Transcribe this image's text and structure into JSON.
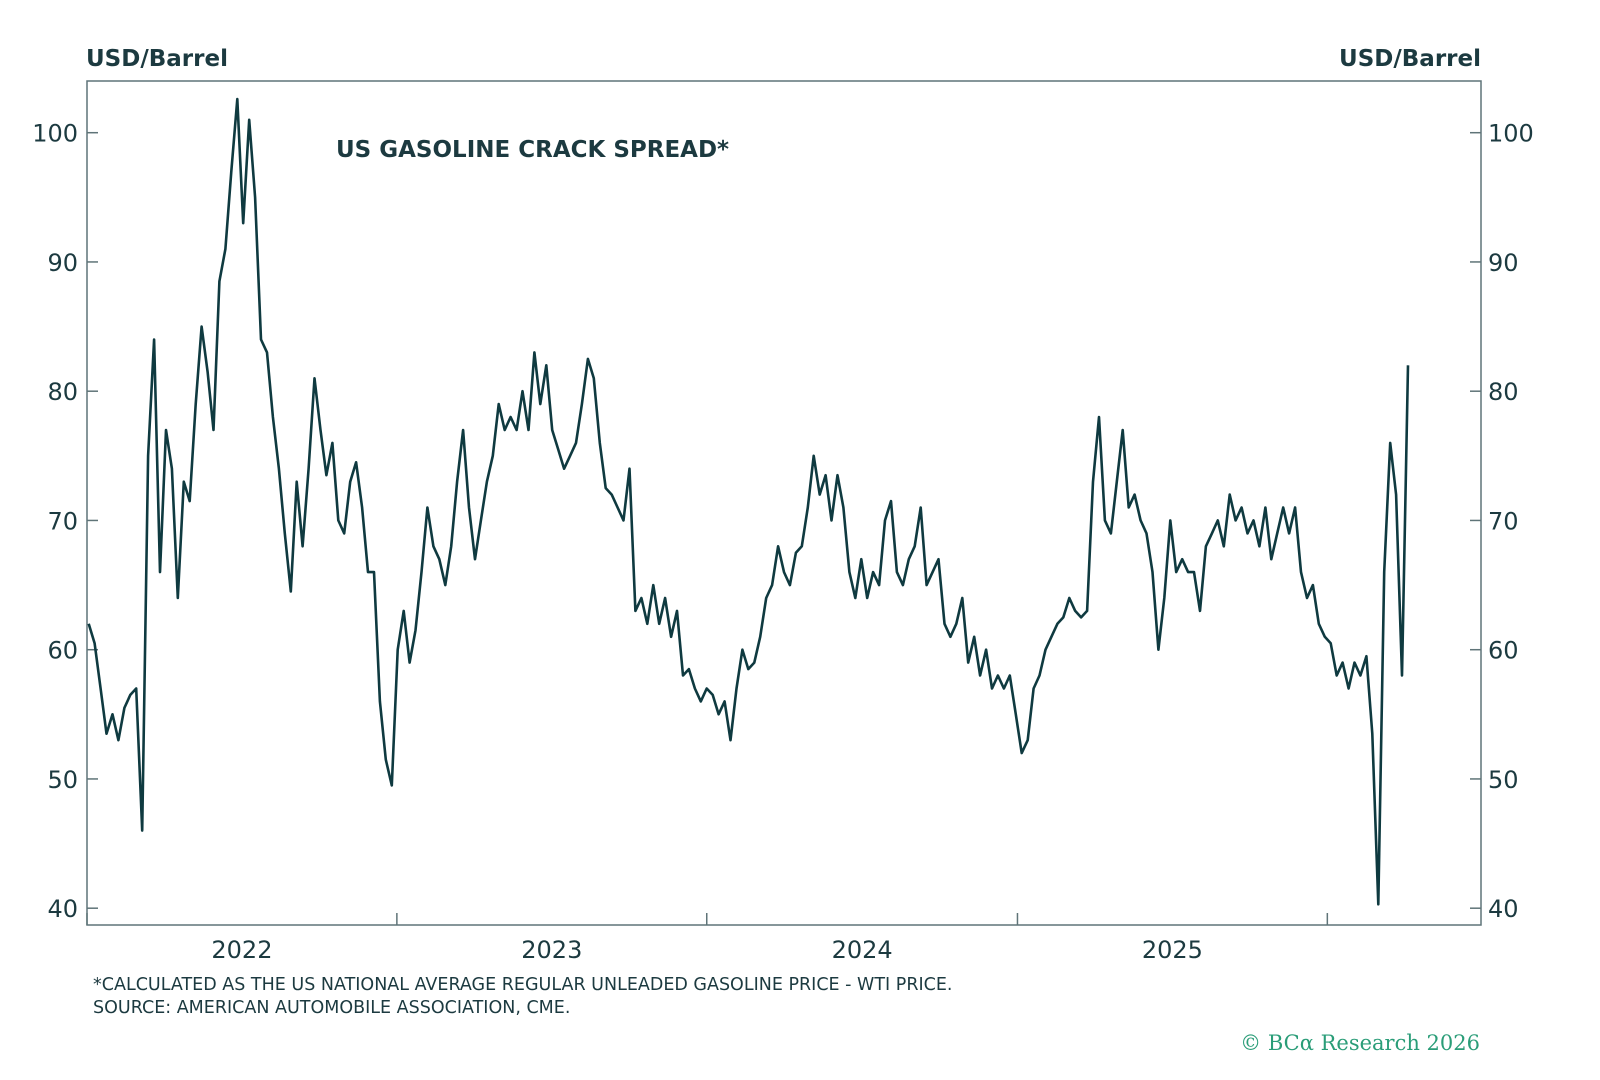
{
  "chart_data": {
    "type": "line",
    "title": "US GASOLINE CRACK SPREAD*",
    "ylabel_left": "USD/Barrel",
    "ylabel_right": "USD/Barrel",
    "ylim": [
      38.7,
      104
    ],
    "yticks": [
      40,
      50,
      60,
      70,
      80,
      90,
      100
    ],
    "xlim": [
      "2022-01-01",
      "2026-07-01"
    ],
    "xticks": [
      "2022",
      "2023",
      "2024",
      "2025"
    ],
    "grid": false,
    "line_color": "#0f3a40",
    "series": [
      {
        "start": "2022-01-03",
        "frequency": "weekly",
        "values": [
          62,
          60.5,
          57,
          53.5,
          55,
          53,
          55.5,
          56.5,
          57,
          46,
          75,
          84,
          66,
          77,
          74,
          64,
          73,
          71.5,
          79,
          85,
          81.5,
          77,
          88.5,
          91,
          97,
          102.6,
          93,
          101,
          95,
          84,
          83,
          78,
          74,
          69,
          64.5,
          73,
          68,
          74,
          81,
          77,
          73.5,
          76,
          70,
          69,
          73,
          74.5,
          71,
          66,
          66,
          56,
          51.5,
          49.5,
          60,
          63,
          59,
          61.5,
          66,
          71,
          68,
          67,
          65,
          68,
          73,
          77,
          71,
          67,
          70,
          73,
          75,
          79,
          77,
          78,
          77,
          80,
          77,
          83,
          79,
          82,
          77,
          75.5,
          74,
          75,
          76,
          79,
          82.5,
          81,
          76,
          72.5,
          72,
          71,
          70,
          74,
          63,
          64,
          62,
          65,
          62,
          64,
          61,
          63,
          58,
          58.5,
          57,
          56,
          57,
          56.5,
          55,
          56,
          53,
          57,
          60,
          58.5,
          59,
          61,
          64,
          65,
          68,
          66,
          65,
          67.5,
          68,
          71,
          75,
          72,
          73.5,
          70,
          73.5,
          71,
          66,
          64,
          67,
          64,
          66,
          65,
          70,
          71.5,
          66,
          65,
          67,
          68,
          71,
          65,
          66,
          67,
          62,
          61,
          62,
          64,
          59,
          61,
          58,
          60,
          57,
          58,
          57,
          58,
          55,
          52,
          53,
          57,
          58,
          60,
          61,
          62,
          62.5,
          64,
          63,
          62.5,
          63,
          73,
          78,
          70,
          69,
          73,
          77,
          71,
          72,
          70,
          69,
          66,
          60,
          64,
          70,
          66,
          67,
          66,
          66,
          63,
          68,
          69,
          70,
          68,
          72,
          70,
          71,
          69,
          70,
          68,
          71,
          67,
          69,
          71,
          69,
          71,
          66,
          64,
          65,
          62,
          61,
          60.5,
          58,
          59,
          57,
          59,
          58,
          59.5,
          53.5,
          40.3,
          66,
          76,
          72,
          58,
          82
        ]
      }
    ]
  },
  "footnotes": [
    "*CALCULATED AS THE US NATIONAL AVERAGE REGULAR UNLEADED GASOLINE PRICE - WTI PRICE.",
    "SOURCE: AMERICAN AUTOMOBILE ASSOCIATION, CME."
  ],
  "copyright": "© BCα Research 2026",
  "colors": {
    "text": "#1c3a40",
    "line": "#0f3a40",
    "brand": "#2a9d78"
  }
}
